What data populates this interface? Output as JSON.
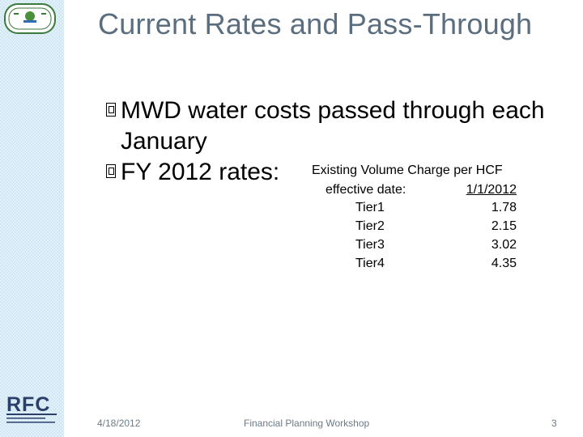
{
  "slide": {
    "title": "Current Rates and Pass-Through",
    "bullets": [
      "MWD water costs passed through each January",
      "FY 2012 rates:"
    ]
  },
  "rates": {
    "heading": "Existing Volume Charge per HCF",
    "effective_label": "effective date:",
    "effective_date": "1/1/2012",
    "tiers": [
      {
        "name": "Tier1",
        "value": "1.78"
      },
      {
        "name": "Tier2",
        "value": "2.15"
      },
      {
        "name": "Tier3",
        "value": "3.02"
      },
      {
        "name": "Tier4",
        "value": "4.35"
      }
    ]
  },
  "footer": {
    "date": "4/18/2012",
    "center": "Financial Planning Workshop",
    "page": "3"
  },
  "logos": {
    "rfc_text": "RFC",
    "colors": {
      "rfc": "#2b3f6b",
      "top_logo": "#3a7a3a",
      "sidebar": "#cfe6f4",
      "title": "#5a6e7f"
    }
  }
}
